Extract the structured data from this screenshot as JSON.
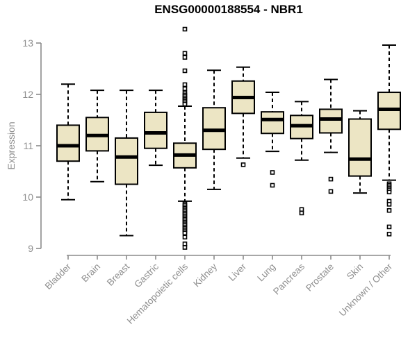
{
  "title": "ENSG00000188554 - NBR1",
  "y_axis": {
    "label": "Expression"
  },
  "colors": {
    "background": "#ffffff",
    "box_fill": "#ece5c4",
    "box_stroke": "#000000",
    "median_stroke": "#000000",
    "outlier_stroke": "#000000",
    "axis_line": "#8a8a8a",
    "axis_text": "#8f8f8f",
    "title_text": "#000000"
  },
  "chart_data": {
    "type": "box",
    "title": "ENSG00000188554 - NBR1",
    "xlabel": "",
    "ylabel": "Expression",
    "ylim": [
      9,
      13.3
    ],
    "yticks": [
      9,
      10,
      11,
      12,
      13
    ],
    "grid": false,
    "legend": "none",
    "categories": [
      "Bladder",
      "Brain",
      "Breast",
      "Gastric",
      "Hematopoietic cells",
      "Kidney",
      "Liver",
      "Lung",
      "Pancreas",
      "Prostate",
      "Skin",
      "Unknown / Other"
    ],
    "series": [
      {
        "name": "Bladder",
        "whisker_low": 9.95,
        "q1": 10.7,
        "median": 11.0,
        "q3": 11.4,
        "whisker_high": 12.2,
        "outliers": []
      },
      {
        "name": "Brain",
        "whisker_low": 10.3,
        "q1": 10.9,
        "median": 11.2,
        "q3": 11.55,
        "whisker_high": 12.08,
        "outliers": []
      },
      {
        "name": "Breast",
        "whisker_low": 9.25,
        "q1": 10.25,
        "median": 10.78,
        "q3": 11.15,
        "whisker_high": 12.08,
        "outliers": []
      },
      {
        "name": "Gastric",
        "whisker_low": 10.62,
        "q1": 10.95,
        "median": 11.25,
        "q3": 11.65,
        "whisker_high": 12.08,
        "outliers": []
      },
      {
        "name": "Hematopoietic cells",
        "whisker_low": 9.92,
        "q1": 10.57,
        "median": 10.82,
        "q3": 11.05,
        "whisker_high": 11.77,
        "outliers": [
          13.27,
          12.8,
          12.72,
          12.46,
          12.19,
          12.11,
          12.03,
          11.99,
          11.96,
          11.93,
          11.9,
          11.87,
          11.84,
          11.81,
          9.87,
          9.84,
          9.81,
          9.78,
          9.75,
          9.72,
          9.69,
          9.66,
          9.63,
          9.6,
          9.57,
          9.54,
          9.51,
          9.48,
          9.45,
          9.42,
          9.39,
          9.36,
          9.33,
          9.3,
          9.22,
          9.09,
          9.02
        ]
      },
      {
        "name": "Kidney",
        "whisker_low": 10.15,
        "q1": 10.93,
        "median": 11.3,
        "q3": 11.74,
        "whisker_high": 12.47,
        "outliers": []
      },
      {
        "name": "Liver",
        "whisker_low": 10.76,
        "q1": 11.63,
        "median": 11.94,
        "q3": 12.26,
        "whisker_high": 12.53,
        "outliers": [
          10.63
        ]
      },
      {
        "name": "Lung",
        "whisker_low": 10.89,
        "q1": 11.24,
        "median": 11.51,
        "q3": 11.66,
        "whisker_high": 12.04,
        "outliers": [
          10.48,
          10.23
        ]
      },
      {
        "name": "Pancreas",
        "whisker_low": 10.72,
        "q1": 11.14,
        "median": 11.39,
        "q3": 11.59,
        "whisker_high": 11.86,
        "outliers": [
          9.76,
          9.69
        ]
      },
      {
        "name": "Prostate",
        "whisker_low": 10.87,
        "q1": 11.25,
        "median": 11.52,
        "q3": 11.71,
        "whisker_high": 12.29,
        "outliers": [
          10.35,
          10.11
        ]
      },
      {
        "name": "Skin",
        "whisker_low": 10.08,
        "q1": 10.41,
        "median": 10.74,
        "q3": 11.52,
        "whisker_high": 11.68,
        "outliers": []
      },
      {
        "name": "Unknown / Other",
        "whisker_low": 10.33,
        "q1": 11.32,
        "median": 11.71,
        "q3": 12.04,
        "whisker_high": 12.96,
        "outliers": [
          10.26,
          10.23,
          10.2,
          10.17,
          10.14,
          10.1,
          9.92,
          9.86,
          9.74,
          9.42,
          9.28
        ]
      }
    ]
  }
}
